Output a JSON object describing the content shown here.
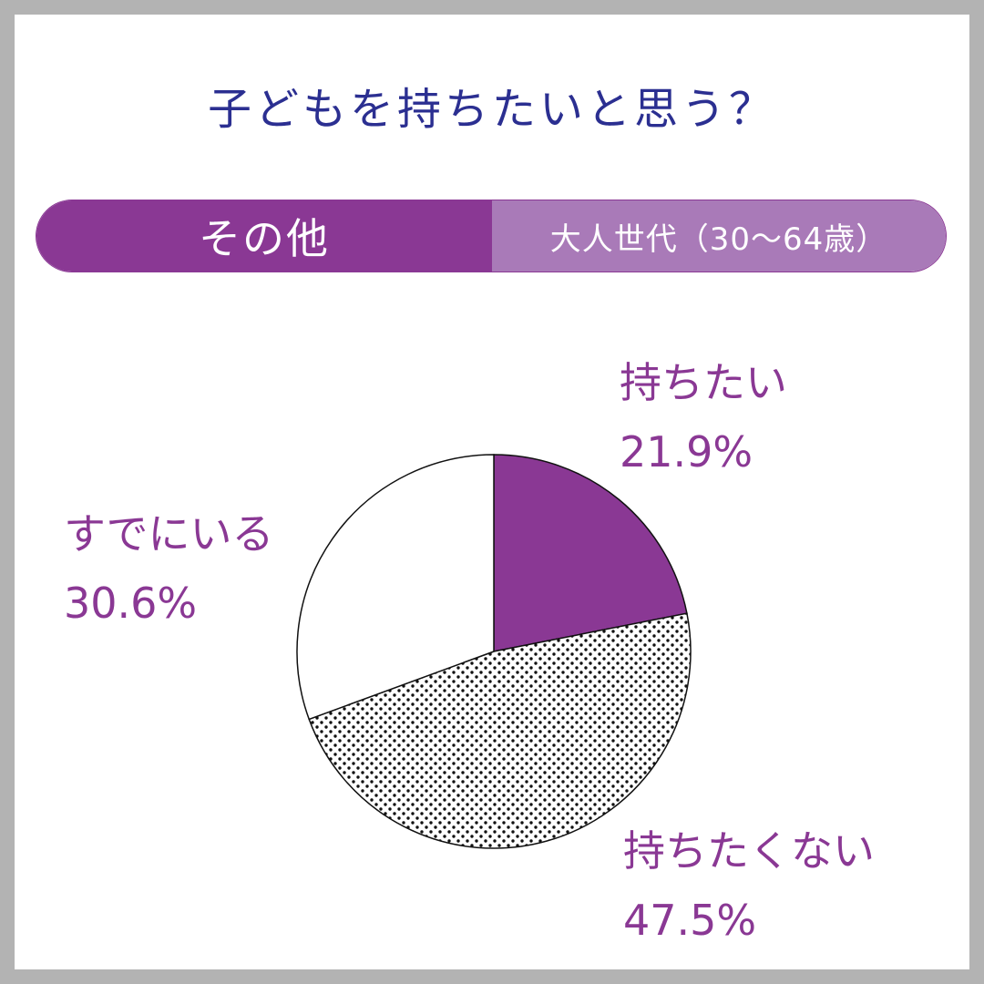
{
  "title": "子どもを持ちたいと思う？",
  "tabs": {
    "active": "その他",
    "inactive": "大人世代（30〜64歳）"
  },
  "colors": {
    "accent": "#8a3894",
    "accent_light": "#a97ab8",
    "title": "#2b2f91",
    "frame": "#b3b3b3"
  },
  "chart_data": {
    "type": "pie",
    "slices": [
      {
        "name": "持ちたい",
        "value": 21.9,
        "label": "21.9%",
        "fill": "solid-purple"
      },
      {
        "name": "持ちたくない",
        "value": 47.5,
        "label": "47.5%",
        "fill": "dotted"
      },
      {
        "name": "すでにいる",
        "value": 30.6,
        "label": "30.6%",
        "fill": "white"
      }
    ]
  }
}
